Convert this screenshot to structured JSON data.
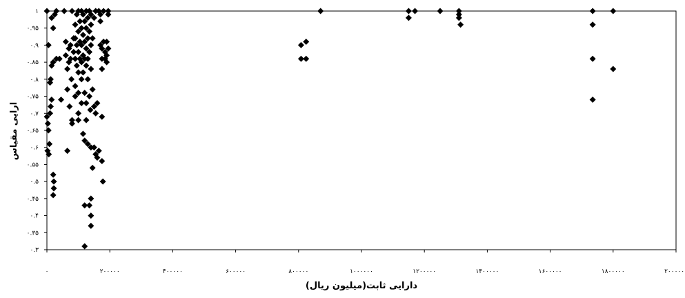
{
  "chart_data": {
    "type": "scatter",
    "xlabel": "دارایی ثابت(میلیون ریال)",
    "ylabel": "ارایی مقیاس",
    "xlim": [
      0,
      2000000
    ],
    "ylim": [
      0.3,
      1
    ],
    "x_ticks": [
      0,
      200000,
      400000,
      600000,
      800000,
      1000000,
      1200000,
      1400000,
      1600000,
      1800000,
      2000000
    ],
    "x_tick_labels": [
      "۰",
      "۲۰۰۰۰۰",
      "۴۰۰۰۰۰",
      "۶۰۰۰۰۰",
      "۸۰۰۰۰۰",
      "۱۰۰۰۰۰۰",
      "۱۲۰۰۰۰۰",
      "۱۴۰۰۰۰۰",
      "۱۶۰۰۰۰۰",
      "۱۸۰۰۰۰۰",
      "۲۰۰۰۰۰۰"
    ],
    "y_ticks": [
      0.3,
      0.35,
      0.4,
      0.45,
      0.5,
      0.55,
      0.6,
      0.65,
      0.7,
      0.75,
      0.8,
      0.85,
      0.9,
      0.95,
      1
    ],
    "y_tick_labels": [
      "۰.۳",
      "۰.۳۵",
      "۰.۴",
      "۰.۴۵",
      "۰.۵",
      "۰.۵۵",
      "۰.۶",
      "۰.۶۵",
      "۰.۷",
      "۰.۷۵",
      "۰.۸",
      "۰.۸۵",
      "۰.۹",
      "۰.۹۵",
      "۱"
    ],
    "grid": false,
    "marker": "diamond",
    "marker_color": "#000000",
    "points": [
      {
        "x": 0,
        "y": 1
      },
      {
        "x": 5000,
        "y": 0.9
      },
      {
        "x": 0,
        "y": 0.69
      },
      {
        "x": 3000,
        "y": 0.67
      },
      {
        "x": 5000,
        "y": 0.65
      },
      {
        "x": 8000,
        "y": 0.61
      },
      {
        "x": 2000,
        "y": 0.59
      },
      {
        "x": 6000,
        "y": 0.58
      },
      {
        "x": 10000,
        "y": 0.7
      },
      {
        "x": 12000,
        "y": 0.72
      },
      {
        "x": 15000,
        "y": 0.74
      },
      {
        "x": 10000,
        "y": 0.79
      },
      {
        "x": 12000,
        "y": 0.8
      },
      {
        "x": 15000,
        "y": 0.84
      },
      {
        "x": 20000,
        "y": 0.85
      },
      {
        "x": 15000,
        "y": 0.98
      },
      {
        "x": 25000,
        "y": 0.99
      },
      {
        "x": 30000,
        "y": 1
      },
      {
        "x": 20000,
        "y": 0.95
      },
      {
        "x": 20000,
        "y": 0.52
      },
      {
        "x": 22000,
        "y": 0.5
      },
      {
        "x": 22000,
        "y": 0.48
      },
      {
        "x": 20000,
        "y": 0.46
      },
      {
        "x": 30000,
        "y": 0.86
      },
      {
        "x": 40000,
        "y": 0.86
      },
      {
        "x": 45000,
        "y": 0.74
      },
      {
        "x": 55000,
        "y": 1
      },
      {
        "x": 60000,
        "y": 0.91
      },
      {
        "x": 60000,
        "y": 0.87
      },
      {
        "x": 65000,
        "y": 0.83
      },
      {
        "x": 65000,
        "y": 0.59
      },
      {
        "x": 65000,
        "y": 0.77
      },
      {
        "x": 70000,
        "y": 0.89
      },
      {
        "x": 70000,
        "y": 0.85
      },
      {
        "x": 72000,
        "y": 0.72
      },
      {
        "x": 75000,
        "y": 0.9
      },
      {
        "x": 75000,
        "y": 0.86
      },
      {
        "x": 78000,
        "y": 0.8
      },
      {
        "x": 80000,
        "y": 1
      },
      {
        "x": 80000,
        "y": 0.68
      },
      {
        "x": 80000,
        "y": 0.67
      },
      {
        "x": 85000,
        "y": 0.92
      },
      {
        "x": 85000,
        "y": 0.88
      },
      {
        "x": 90000,
        "y": 0.96
      },
      {
        "x": 90000,
        "y": 0.92
      },
      {
        "x": 90000,
        "y": 0.86
      },
      {
        "x": 90000,
        "y": 0.78
      },
      {
        "x": 90000,
        "y": 0.75
      },
      {
        "x": 95000,
        "y": 0.99
      },
      {
        "x": 95000,
        "y": 0.9
      },
      {
        "x": 95000,
        "y": 0.84
      },
      {
        "x": 100000,
        "y": 1
      },
      {
        "x": 100000,
        "y": 0.94
      },
      {
        "x": 100000,
        "y": 0.88
      },
      {
        "x": 100000,
        "y": 0.82
      },
      {
        "x": 100000,
        "y": 0.76
      },
      {
        "x": 100000,
        "y": 0.7
      },
      {
        "x": 100000,
        "y": 0.68
      },
      {
        "x": 105000,
        "y": 0.97
      },
      {
        "x": 105000,
        "y": 0.91
      },
      {
        "x": 105000,
        "y": 0.86
      },
      {
        "x": 110000,
        "y": 1
      },
      {
        "x": 110000,
        "y": 0.95
      },
      {
        "x": 110000,
        "y": 0.9
      },
      {
        "x": 110000,
        "y": 0.85
      },
      {
        "x": 110000,
        "y": 0.8
      },
      {
        "x": 110000,
        "y": 0.73
      },
      {
        "x": 115000,
        "y": 0.99
      },
      {
        "x": 115000,
        "y": 0.93
      },
      {
        "x": 115000,
        "y": 0.87
      },
      {
        "x": 115000,
        "y": 0.82
      },
      {
        "x": 115000,
        "y": 0.64
      },
      {
        "x": 120000,
        "y": 0.97
      },
      {
        "x": 120000,
        "y": 0.91
      },
      {
        "x": 120000,
        "y": 0.86
      },
      {
        "x": 120000,
        "y": 0.76
      },
      {
        "x": 120000,
        "y": 0.62
      },
      {
        "x": 120000,
        "y": 0.43
      },
      {
        "x": 120000,
        "y": 0.31
      },
      {
        "x": 125000,
        "y": 1
      },
      {
        "x": 125000,
        "y": 0.95
      },
      {
        "x": 125000,
        "y": 0.89
      },
      {
        "x": 125000,
        "y": 0.84
      },
      {
        "x": 125000,
        "y": 0.73
      },
      {
        "x": 125000,
        "y": 0.68
      },
      {
        "x": 130000,
        "y": 0.98
      },
      {
        "x": 130000,
        "y": 0.92
      },
      {
        "x": 130000,
        "y": 0.86
      },
      {
        "x": 130000,
        "y": 0.8
      },
      {
        "x": 130000,
        "y": 0.61
      },
      {
        "x": 135000,
        "y": 1
      },
      {
        "x": 135000,
        "y": 0.94
      },
      {
        "x": 135000,
        "y": 0.88
      },
      {
        "x": 135000,
        "y": 0.75
      },
      {
        "x": 135000,
        "y": 0.43
      },
      {
        "x": 138000,
        "y": 0.71
      },
      {
        "x": 140000,
        "y": 0.96
      },
      {
        "x": 140000,
        "y": 0.9
      },
      {
        "x": 140000,
        "y": 0.83
      },
      {
        "x": 140000,
        "y": 0.6
      },
      {
        "x": 140000,
        "y": 0.45
      },
      {
        "x": 140000,
        "y": 0.4
      },
      {
        "x": 140000,
        "y": 0.37
      },
      {
        "x": 145000,
        "y": 0.92
      },
      {
        "x": 145000,
        "y": 0.77
      },
      {
        "x": 145000,
        "y": 0.54
      },
      {
        "x": 150000,
        "y": 0.98
      },
      {
        "x": 150000,
        "y": 0.72
      },
      {
        "x": 150000,
        "y": 0.6
      },
      {
        "x": 155000,
        "y": 1
      },
      {
        "x": 155000,
        "y": 0.7
      },
      {
        "x": 155000,
        "y": 0.58
      },
      {
        "x": 160000,
        "y": 0.73
      },
      {
        "x": 140000,
        "y": 0.99
      },
      {
        "x": 165000,
        "y": 0.59
      },
      {
        "x": 160000,
        "y": 0.57
      },
      {
        "x": 165000,
        "y": 1
      },
      {
        "x": 170000,
        "y": 0.99
      },
      {
        "x": 170000,
        "y": 0.97
      },
      {
        "x": 170000,
        "y": 0.9
      },
      {
        "x": 175000,
        "y": 0.89
      },
      {
        "x": 175000,
        "y": 0.86
      },
      {
        "x": 175000,
        "y": 0.83
      },
      {
        "x": 175000,
        "y": 0.69
      },
      {
        "x": 175000,
        "y": 0.56
      },
      {
        "x": 178000,
        "y": 0.5
      },
      {
        "x": 180000,
        "y": 1
      },
      {
        "x": 180000,
        "y": 0.91
      },
      {
        "x": 185000,
        "y": 0.88
      },
      {
        "x": 185000,
        "y": 0.86
      },
      {
        "x": 190000,
        "y": 0.87
      },
      {
        "x": 190000,
        "y": 0.91
      },
      {
        "x": 190000,
        "y": 0.85
      },
      {
        "x": 195000,
        "y": 1
      },
      {
        "x": 195000,
        "y": 0.99
      },
      {
        "x": 195000,
        "y": 0.89
      },
      {
        "x": 808000,
        "y": 0.9
      },
      {
        "x": 808000,
        "y": 0.86
      },
      {
        "x": 824000,
        "y": 0.91
      },
      {
        "x": 824000,
        "y": 0.86
      },
      {
        "x": 870000,
        "y": 1
      },
      {
        "x": 1150000,
        "y": 0.98
      },
      {
        "x": 1150000,
        "y": 1
      },
      {
        "x": 1170000,
        "y": 1
      },
      {
        "x": 1250000,
        "y": 1
      },
      {
        "x": 1310000,
        "y": 1
      },
      {
        "x": 1310000,
        "y": 0.99
      },
      {
        "x": 1310000,
        "y": 0.98
      },
      {
        "x": 1315000,
        "y": 0.96
      },
      {
        "x": 1735000,
        "y": 1
      },
      {
        "x": 1735000,
        "y": 0.96
      },
      {
        "x": 1735000,
        "y": 0.86
      },
      {
        "x": 1735000,
        "y": 0.74
      },
      {
        "x": 1800000,
        "y": 1
      },
      {
        "x": 1800000,
        "y": 0.83
      }
    ]
  }
}
